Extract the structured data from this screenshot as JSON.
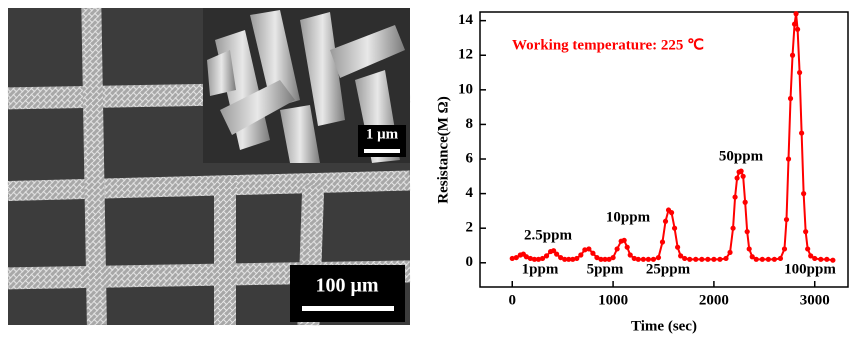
{
  "sem_image": {
    "scale_bar": "100 μm",
    "inset_scale_bar": "1 μm"
  },
  "chart_data": {
    "type": "line",
    "x_label": "Time (sec)",
    "y_label": "Resistance(M Ω)",
    "annotations": [
      "Working temperature: 225 ℃",
      "1ppm",
      "2.5ppm",
      "5ppm",
      "10ppm",
      "25ppm",
      "50ppm",
      "100ppm"
    ],
    "xlim": [
      -320,
      3330
    ],
    "xticks": [
      0,
      1000,
      2000,
      3000
    ],
    "ylim": [
      -1.4,
      14.5
    ],
    "yticks": [
      0,
      2,
      4,
      6,
      8,
      10,
      12,
      14
    ],
    "x": [
      0,
      40,
      80,
      110,
      140,
      180,
      220,
      260,
      300,
      340,
      380,
      410,
      440,
      480,
      520,
      560,
      600,
      640,
      680,
      720,
      760,
      800,
      840,
      880,
      920,
      960,
      1000,
      1040,
      1080,
      1110,
      1140,
      1170,
      1210,
      1250,
      1300,
      1350,
      1400,
      1450,
      1490,
      1520,
      1550,
      1580,
      1610,
      1640,
      1670,
      1710,
      1760,
      1820,
      1880,
      1940,
      2000,
      2060,
      2120,
      2160,
      2190,
      2210,
      2230,
      2250,
      2270,
      2290,
      2310,
      2330,
      2350,
      2380,
      2420,
      2480,
      2540,
      2600,
      2660,
      2700,
      2720,
      2740,
      2760,
      2780,
      2800,
      2815,
      2830,
      2850,
      2870,
      2890,
      2910,
      2930,
      2960,
      3000,
      3060,
      3120,
      3180
    ],
    "series": [
      {
        "color": "#ff0000",
        "values": [
          0.25,
          0.3,
          0.45,
          0.5,
          0.35,
          0.25,
          0.2,
          0.2,
          0.25,
          0.4,
          0.65,
          0.7,
          0.5,
          0.3,
          0.2,
          0.2,
          0.2,
          0.25,
          0.45,
          0.75,
          0.8,
          0.55,
          0.3,
          0.2,
          0.2,
          0.2,
          0.3,
          0.8,
          1.25,
          1.3,
          0.9,
          0.45,
          0.25,
          0.2,
          0.2,
          0.2,
          0.2,
          0.3,
          1.2,
          2.4,
          3.05,
          2.9,
          2.0,
          0.9,
          0.4,
          0.25,
          0.2,
          0.2,
          0.2,
          0.2,
          0.2,
          0.2,
          0.25,
          0.6,
          2.0,
          3.8,
          4.9,
          5.25,
          5.3,
          5.0,
          3.5,
          1.8,
          0.8,
          0.35,
          0.2,
          0.2,
          0.2,
          0.2,
          0.25,
          0.8,
          2.5,
          6.0,
          9.5,
          12.0,
          13.8,
          14.4,
          13.5,
          11.0,
          7.5,
          4.0,
          1.8,
          0.8,
          0.4,
          0.25,
          0.2,
          0.2,
          0.15
        ]
      }
    ]
  }
}
